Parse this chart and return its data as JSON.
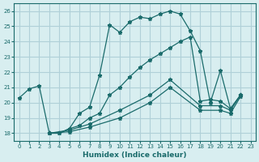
{
  "xlabel": "Humidex (Indice chaleur)",
  "xlim": [
    -0.5,
    23.5
  ],
  "ylim": [
    17.5,
    26.5
  ],
  "xticks": [
    0,
    1,
    2,
    3,
    4,
    5,
    6,
    7,
    8,
    9,
    10,
    11,
    12,
    13,
    14,
    15,
    16,
    17,
    18,
    19,
    20,
    21,
    22,
    23
  ],
  "yticks": [
    18,
    19,
    20,
    21,
    22,
    23,
    24,
    25,
    26
  ],
  "bg_color": "#d8eef0",
  "grid_color": "#b0d0d8",
  "line_color": "#1a6b6b",
  "line1_x": [
    0,
    1,
    2,
    3,
    4,
    5,
    6,
    7,
    8,
    9,
    10,
    11,
    12,
    13,
    14,
    15,
    16,
    17,
    18,
    19,
    20,
    21,
    22
  ],
  "line1_y": [
    20.3,
    20.9,
    21.1,
    18.0,
    18.0,
    18.3,
    19.3,
    19.7,
    21.8,
    25.1,
    24.6,
    25.3,
    25.6,
    25.5,
    25.8,
    26.0,
    25.8,
    24.7,
    23.4,
    20.0,
    22.1,
    19.6,
    20.5
  ],
  "line2_x": [
    3,
    4,
    5,
    6,
    7,
    8,
    9,
    10,
    11,
    12,
    13,
    14,
    15,
    16,
    17,
    18,
    19,
    20,
    21,
    22
  ],
  "line2_y": [
    18.0,
    18.0,
    18.3,
    18.5,
    19.0,
    19.3,
    20.5,
    21.0,
    21.7,
    22.3,
    22.8,
    23.2,
    23.6,
    24.0,
    24.3,
    20.1,
    20.2,
    20.1,
    19.6,
    20.5
  ],
  "line3_x": [
    3,
    5,
    7,
    10,
    13,
    15,
    18,
    20,
    21,
    22
  ],
  "line3_y": [
    18.0,
    18.2,
    18.6,
    19.5,
    20.5,
    21.5,
    19.8,
    19.8,
    19.5,
    20.5
  ],
  "line4_x": [
    3,
    5,
    7,
    10,
    13,
    15,
    18,
    20,
    21,
    22
  ],
  "line4_y": [
    18.0,
    18.1,
    18.4,
    19.0,
    20.0,
    21.0,
    19.5,
    19.5,
    19.3,
    20.4
  ]
}
